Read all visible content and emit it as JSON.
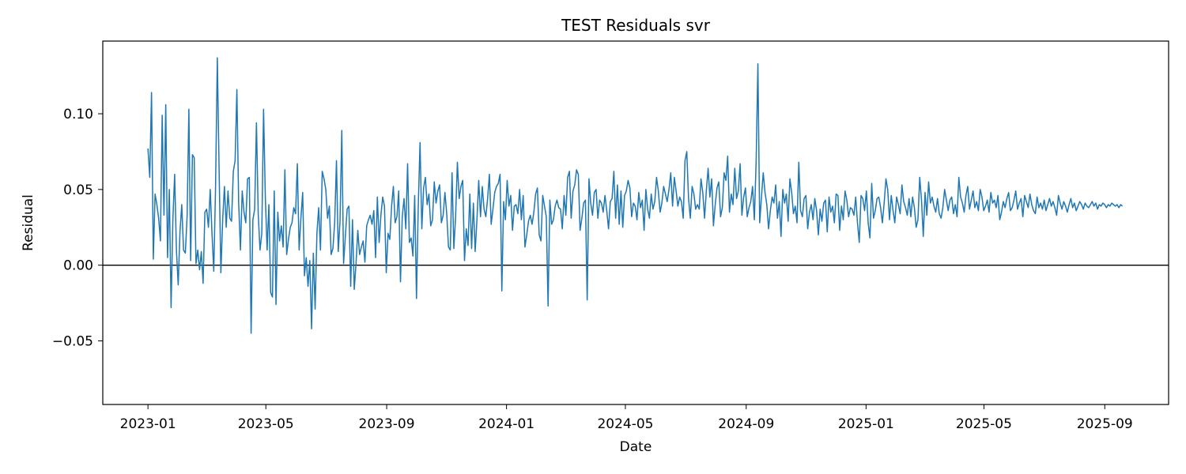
{
  "chart_data": {
    "type": "line",
    "title": "TEST Residuals svr",
    "xlabel": "Date",
    "ylabel": "Residual",
    "x_ticks": [
      "2023-01",
      "2023-05",
      "2023-09",
      "2024-01",
      "2024-05",
      "2024-09",
      "2025-01",
      "2025-05",
      "2025-09"
    ],
    "y_ticks": [
      "−0.05",
      "0.00",
      "0.05",
      "0.10"
    ],
    "xlim": [
      "2022-11-16",
      "2025-11-05"
    ],
    "ylim": [
      -0.092,
      0.148
    ],
    "grid": false,
    "reference_line": {
      "y": 0,
      "color": "#000000"
    },
    "x_start": "2023-01-01",
    "x_end": "2025-09-19",
    "series": [
      {
        "color": "#1f77b4",
        "values": [
          0.077,
          0.058,
          0.114,
          0.004,
          0.047,
          0.04,
          0.031,
          0.016,
          0.099,
          0.033,
          0.106,
          0.005,
          0.05,
          -0.028,
          0.03,
          0.06,
          0.01,
          -0.013,
          0.022,
          0.04,
          0.01,
          0.008,
          0.032,
          0.103,
          0.003,
          0.073,
          0.071,
          0.001,
          0.01,
          -0.003,
          0.009,
          -0.012,
          0.035,
          0.037,
          0.025,
          0.05,
          0.021,
          -0.004,
          0.051,
          0.137,
          0.063,
          -0.005,
          0.03,
          0.052,
          0.025,
          0.049,
          0.031,
          0.029,
          0.062,
          0.069,
          0.116,
          0.041,
          0.01,
          0.049,
          0.035,
          0.028,
          0.057,
          0.058,
          -0.045,
          0.03,
          0.037,
          0.094,
          0.034,
          0.01,
          0.021,
          0.103,
          0.045,
          0.01,
          0.04,
          -0.018,
          -0.021,
          0.049,
          -0.026,
          0.035,
          0.016,
          0.026,
          0.012,
          0.063,
          0.007,
          0.017,
          0.025,
          0.028,
          0.038,
          0.034,
          0.067,
          0.01,
          0.031,
          0.048,
          -0.007,
          0.005,
          -0.014,
          0.003,
          -0.042,
          0.008,
          -0.029,
          0.021,
          0.038,
          0.01,
          0.062,
          0.057,
          0.05,
          0.031,
          0.039,
          0.007,
          0.011,
          0.028,
          0.069,
          0.009,
          0.029,
          0.089,
          0.001,
          0.019,
          0.037,
          0.039,
          -0.014,
          0.03,
          -0.016,
          0.001,
          0.023,
          0.007,
          0.012,
          0.016,
          0.002,
          0.026,
          0.03,
          0.033,
          0.027,
          0.036,
          0.005,
          0.045,
          0.015,
          0.033,
          0.045,
          0.039,
          -0.005,
          0.021,
          0.017,
          0.039,
          0.052,
          0.028,
          0.032,
          0.049,
          -0.011,
          0.032,
          0.044,
          0.024,
          0.067,
          0.015,
          0.018,
          0.006,
          0.046,
          -0.022,
          0.039,
          0.081,
          0.024,
          0.051,
          0.058,
          0.04,
          0.047,
          0.026,
          0.03,
          0.055,
          0.041,
          0.049,
          0.053,
          0.028,
          0.033,
          0.048,
          0.034,
          0.012,
          0.01,
          0.061,
          0.011,
          0.032,
          0.068,
          0.044,
          0.052,
          0.056,
          0.003,
          0.024,
          0.013,
          0.047,
          0.011,
          0.041,
          0.009,
          0.03,
          0.056,
          0.032,
          0.052,
          0.037,
          0.032,
          0.044,
          0.06,
          0.027,
          0.037,
          0.048,
          0.052,
          0.054,
          0.06,
          -0.017,
          0.042,
          0.03,
          0.056,
          0.039,
          0.046,
          0.023,
          0.039,
          0.04,
          0.034,
          0.05,
          0.03,
          0.046,
          0.012,
          0.02,
          0.029,
          0.033,
          0.027,
          0.035,
          0.047,
          0.051,
          0.02,
          0.016,
          0.046,
          0.039,
          0.032,
          -0.027,
          0.043,
          0.027,
          0.03,
          0.039,
          0.043,
          0.038,
          0.037,
          0.024,
          0.046,
          0.033,
          0.058,
          0.062,
          0.031,
          0.049,
          0.053,
          0.063,
          0.06,
          0.023,
          0.031,
          0.041,
          0.043,
          -0.023,
          0.057,
          0.041,
          0.033,
          0.048,
          0.05,
          0.031,
          0.043,
          0.041,
          0.035,
          0.046,
          0.036,
          0.024,
          0.042,
          0.044,
          0.062,
          0.031,
          0.053,
          0.027,
          0.049,
          0.025,
          0.046,
          0.049,
          0.056,
          0.051,
          0.032,
          0.041,
          0.039,
          0.03,
          0.048,
          0.038,
          0.043,
          0.023,
          0.05,
          0.037,
          0.031,
          0.047,
          0.037,
          0.042,
          0.058,
          0.049,
          0.035,
          0.041,
          0.052,
          0.047,
          0.042,
          0.05,
          0.061,
          0.039,
          0.058,
          0.049,
          0.039,
          0.045,
          0.042,
          0.031,
          0.069,
          0.075,
          0.044,
          0.031,
          0.052,
          0.047,
          0.037,
          0.04,
          0.037,
          0.057,
          0.048,
          0.031,
          0.049,
          0.064,
          0.045,
          0.057,
          0.026,
          0.04,
          0.051,
          0.055,
          0.032,
          0.038,
          0.061,
          0.056,
          0.072,
          0.035,
          0.047,
          0.04,
          0.064,
          0.044,
          0.049,
          0.067,
          0.033,
          0.045,
          0.051,
          0.032,
          0.038,
          0.042,
          0.052,
          0.03,
          0.068,
          0.133,
          0.028,
          0.045,
          0.061,
          0.048,
          0.04,
          0.024,
          0.036,
          0.045,
          0.041,
          0.053,
          0.031,
          0.042,
          0.019,
          0.05,
          0.041,
          0.047,
          0.029,
          0.057,
          0.048,
          0.034,
          0.039,
          0.028,
          0.068,
          0.036,
          0.032,
          0.044,
          0.046,
          0.024,
          0.035,
          0.04,
          0.03,
          0.044,
          0.036,
          0.02,
          0.037,
          0.029,
          0.041,
          0.043,
          0.022,
          0.045,
          0.035,
          0.039,
          0.028,
          0.047,
          0.046,
          0.023,
          0.039,
          0.03,
          0.049,
          0.043,
          0.032,
          0.038,
          0.037,
          0.033,
          0.045,
          0.028,
          0.015,
          0.046,
          0.044,
          0.036,
          0.049,
          0.028,
          0.018,
          0.054,
          0.031,
          0.036,
          0.044,
          0.045,
          0.038,
          0.028,
          0.041,
          0.057,
          0.05,
          0.03,
          0.046,
          0.036,
          0.028,
          0.045,
          0.04,
          0.034,
          0.053,
          0.042,
          0.038,
          0.033,
          0.044,
          0.032,
          0.045,
          0.038,
          0.025,
          0.03,
          0.058,
          0.043,
          0.019,
          0.048,
          0.033,
          0.055,
          0.041,
          0.045,
          0.039,
          0.035,
          0.044,
          0.034,
          0.031,
          0.038,
          0.05,
          0.043,
          0.036,
          0.043,
          0.045,
          0.034,
          0.04,
          0.032,
          0.058,
          0.045,
          0.041,
          0.035,
          0.046,
          0.052,
          0.037,
          0.043,
          0.049,
          0.038,
          0.042,
          0.036,
          0.05,
          0.045,
          0.036,
          0.039,
          0.043,
          0.035,
          0.048,
          0.041,
          0.043,
          0.038,
          0.046,
          0.03,
          0.035,
          0.042,
          0.038,
          0.044,
          0.048,
          0.036,
          0.038,
          0.043,
          0.049,
          0.037,
          0.041,
          0.044,
          0.032,
          0.046,
          0.042,
          0.038,
          0.047,
          0.04,
          0.036,
          0.034,
          0.045,
          0.038,
          0.041,
          0.037,
          0.043,
          0.036,
          0.04,
          0.044,
          0.039,
          0.042,
          0.038,
          0.033,
          0.046,
          0.041,
          0.037,
          0.042,
          0.039,
          0.035,
          0.04,
          0.044,
          0.038,
          0.041,
          0.036,
          0.039,
          0.042,
          0.04,
          0.037,
          0.041,
          0.039,
          0.038,
          0.04,
          0.042,
          0.039,
          0.041,
          0.037,
          0.04,
          0.039,
          0.041,
          0.04,
          0.038,
          0.04,
          0.039,
          0.041,
          0.04,
          0.039,
          0.04,
          0.038,
          0.04,
          0.039
        ]
      }
    ]
  }
}
